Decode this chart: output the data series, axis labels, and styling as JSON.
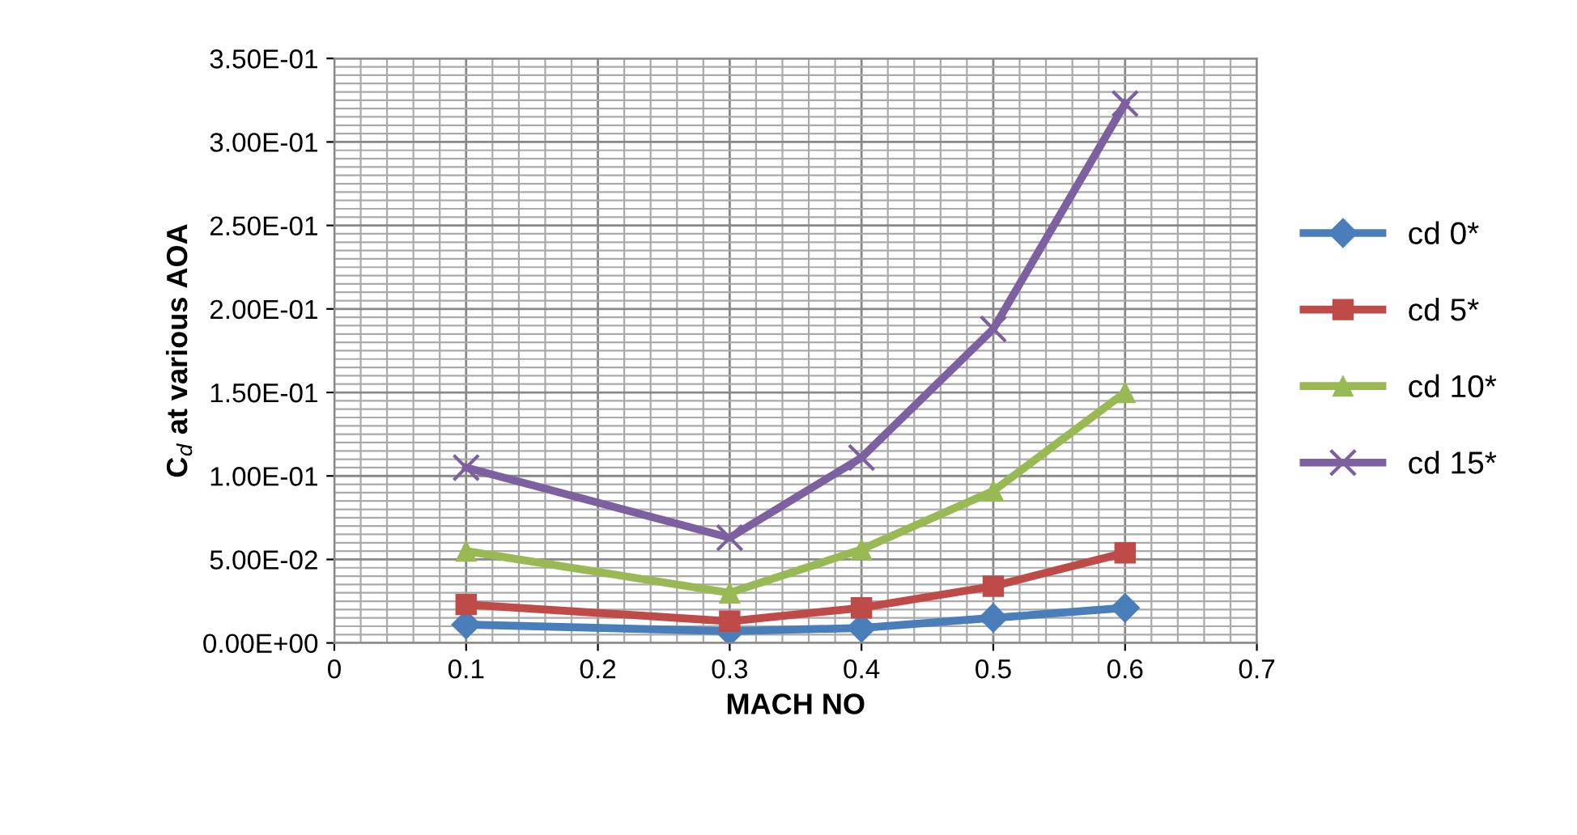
{
  "chart_data": {
    "type": "line",
    "xlabel": "MACH NO",
    "ylabel": "C$_{d}$ at various AOA",
    "x": [
      0.1,
      0.3,
      0.4,
      0.5,
      0.6
    ],
    "series": [
      {
        "name": "cd 0*",
        "color": "#4a7ebb",
        "marker": "diamond",
        "values": [
          0.011,
          0.007,
          0.009,
          0.015,
          0.021
        ]
      },
      {
        "name": "cd 5*",
        "color": "#be4b48",
        "marker": "square",
        "values": [
          0.023,
          0.013,
          0.021,
          0.034,
          0.054
        ]
      },
      {
        "name": "cd 10*",
        "color": "#98b954",
        "marker": "triangle",
        "values": [
          0.055,
          0.03,
          0.056,
          0.091,
          0.15
        ]
      },
      {
        "name": "cd 15*",
        "color": "#7d60a0",
        "marker": "cross",
        "values": [
          0.105,
          0.063,
          0.111,
          0.188,
          0.323
        ]
      }
    ],
    "xlim": [
      0,
      0.7
    ],
    "xticks": [
      0,
      0.1,
      0.2,
      0.3,
      0.4,
      0.5,
      0.6,
      0.7
    ],
    "ylim": [
      0,
      0.35
    ],
    "yticks": [
      {
        "value": 0,
        "label": "0.00E+00"
      },
      {
        "value": 0.05,
        "label": "5.00E-02"
      },
      {
        "value": 0.1,
        "label": "1.00E-01"
      },
      {
        "value": 0.15,
        "label": "1.50E-01"
      },
      {
        "value": 0.2,
        "label": "2.00E-01"
      },
      {
        "value": 0.25,
        "label": "2.50E-01"
      },
      {
        "value": 0.3,
        "label": "3.00E-01"
      },
      {
        "value": 0.35,
        "label": "3.50E-01"
      }
    ],
    "grid": true,
    "legend": "right",
    "line_style": "solid"
  }
}
